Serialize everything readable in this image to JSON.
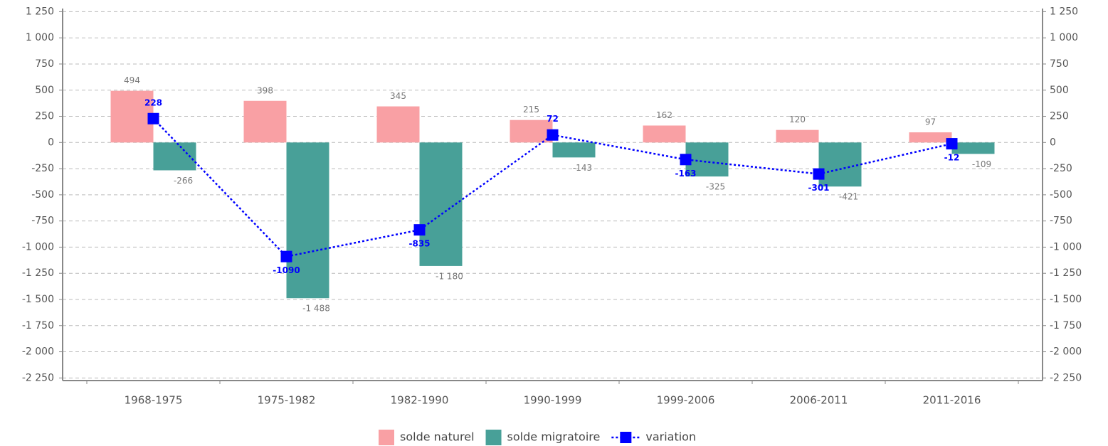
{
  "chart_data": {
    "type": "bar",
    "categories": [
      "1968-1975",
      "1975-1982",
      "1982-1990",
      "1990-1999",
      "1999-2006",
      "2006-2011",
      "2011-2016"
    ],
    "series": [
      {
        "name": "solde naturel",
        "type": "bar",
        "color": "#f9a0a4",
        "values": [
          494,
          398,
          345,
          215,
          162,
          120,
          97
        ]
      },
      {
        "name": "solde migratoire",
        "type": "bar",
        "color": "#48a098",
        "values": [
          -266,
          -1488,
          -1180,
          -143,
          -325,
          -421,
          -109
        ],
        "value_labels": [
          "-266",
          "-1 488",
          "-1 180",
          "-143",
          "-325",
          "-421",
          "-109"
        ]
      },
      {
        "name": "variation",
        "type": "line",
        "color": "#0000ff",
        "values": [
          228,
          -1090,
          -835,
          72,
          -163,
          -301,
          -12
        ]
      }
    ],
    "ylim": [
      -2275,
      1280
    ],
    "yticks": [
      {
        "value": 1250,
        "label": "1 250"
      },
      {
        "value": 1000,
        "label": "1 000"
      },
      750,
      500,
      250,
      0,
      -250,
      -500,
      -750,
      {
        "value": -1000,
        "label": "-1 000"
      },
      {
        "value": -1250,
        "label": "-1 250"
      },
      {
        "value": -1500,
        "label": "-1 500"
      },
      {
        "value": -1750,
        "label": "-1 750"
      },
      {
        "value": -2000,
        "label": "-2 000"
      },
      {
        "value": -2250,
        "label": "-2 250"
      }
    ],
    "y2lim": [
      -2275,
      1280
    ],
    "y2ticks": [
      {
        "value": 1250,
        "label": "1 250"
      },
      {
        "value": 1000,
        "label": "1 000"
      },
      750,
      500,
      250,
      0,
      -250,
      -500,
      -750,
      {
        "value": -1000,
        "label": "-1 000"
      },
      {
        "value": -1250,
        "label": "-1 250"
      },
      {
        "value": -1500,
        "label": "-1 500"
      },
      {
        "value": -1750,
        "label": "-1 750"
      },
      {
        "value": -2000,
        "label": "-2 000"
      },
      {
        "value": -2250,
        "label": "-2 250"
      }
    ],
    "grid": true
  }
}
